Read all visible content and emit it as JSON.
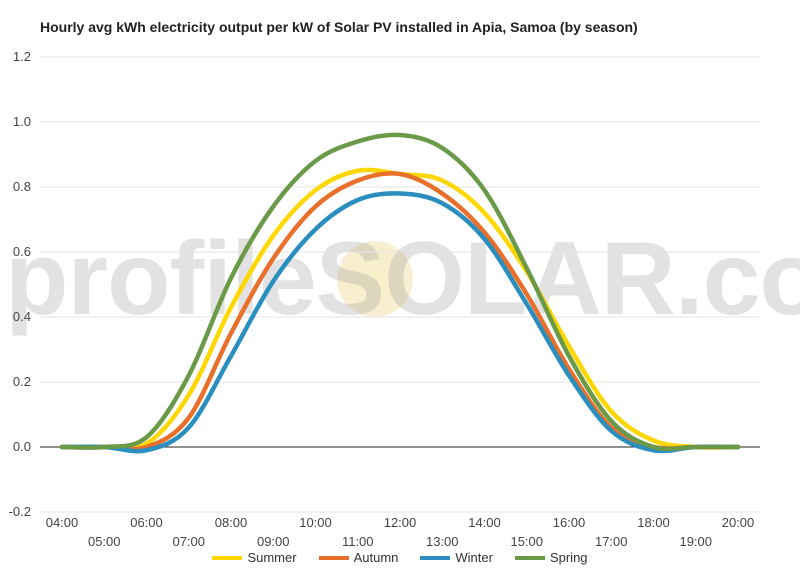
{
  "chart_data": {
    "type": "line",
    "title": "Hourly avg kWh electricity output per kW of Solar PV installed in Apia, Samoa (by season)",
    "xlabel": "",
    "ylabel": "",
    "ylim": [
      -0.2,
      1.2
    ],
    "yticks": [
      "-0.2",
      "0.0",
      "0.2",
      "0.4",
      "0.6",
      "0.8",
      "1.0",
      "1.2"
    ],
    "x_hours": [
      4,
      5,
      6,
      7,
      8,
      9,
      10,
      11,
      12,
      13,
      14,
      15,
      16,
      17,
      18,
      19,
      20
    ],
    "xtick_labels": [
      "04:00",
      "05:00",
      "06:00",
      "07:00",
      "08:00",
      "09:00",
      "10:00",
      "11:00",
      "12:00",
      "13:00",
      "14:00",
      "15:00",
      "16:00",
      "17:00",
      "18:00",
      "19:00",
      "20:00"
    ],
    "grid": true,
    "legend_position": "bottom",
    "series": [
      {
        "name": "Summer",
        "color": "#ffd700",
        "values": [
          0.0,
          0.0,
          0.01,
          0.16,
          0.43,
          0.65,
          0.79,
          0.85,
          0.84,
          0.82,
          0.72,
          0.54,
          0.31,
          0.11,
          0.02,
          0.0,
          0.0
        ]
      },
      {
        "name": "Autumn",
        "color": "#e8702a",
        "values": [
          0.0,
          0.0,
          0.0,
          0.09,
          0.35,
          0.58,
          0.74,
          0.82,
          0.84,
          0.78,
          0.66,
          0.47,
          0.24,
          0.06,
          0.0,
          0.0,
          0.0
        ]
      },
      {
        "name": "Winter",
        "color": "#2a8ebf",
        "values": [
          0.0,
          0.0,
          -0.01,
          0.06,
          0.28,
          0.51,
          0.67,
          0.76,
          0.78,
          0.75,
          0.64,
          0.44,
          0.22,
          0.05,
          -0.01,
          0.0,
          0.0
        ]
      },
      {
        "name": "Spring",
        "color": "#6a9a48",
        "values": [
          0.0,
          0.0,
          0.03,
          0.22,
          0.52,
          0.74,
          0.88,
          0.94,
          0.96,
          0.92,
          0.79,
          0.55,
          0.28,
          0.08,
          0.0,
          0.0,
          0.0
        ]
      }
    ]
  },
  "watermark": {
    "text": "profileSOLAR.com"
  }
}
